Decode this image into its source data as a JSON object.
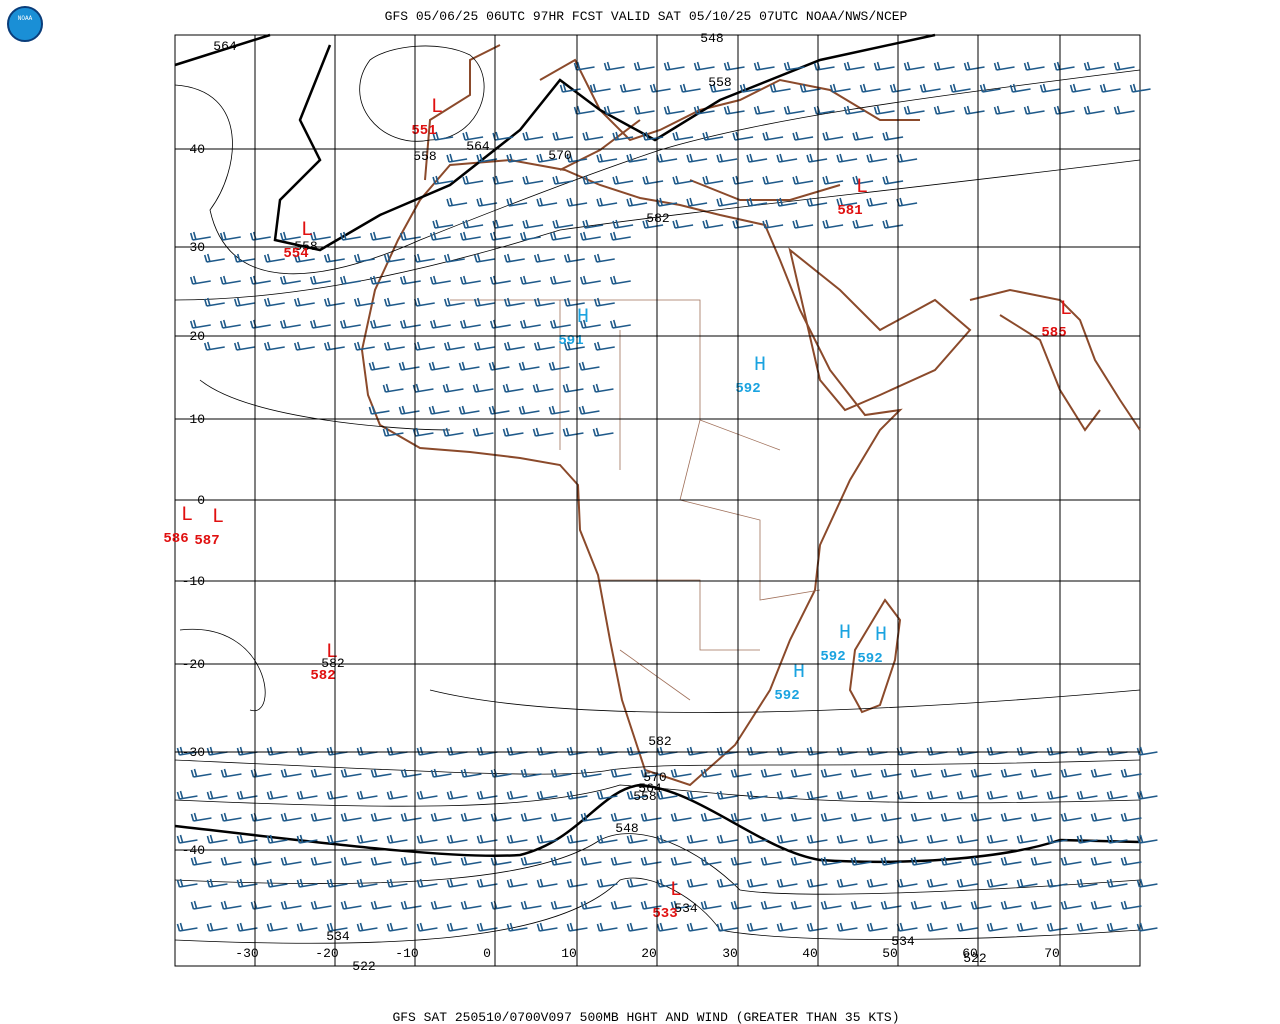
{
  "header": {
    "title": "GFS 05/06/25 06UTC 97HR FCST VALID SAT 05/10/25 07UTC NOAA/NWS/NCEP"
  },
  "footer": {
    "caption": "GFS SAT 250510/0700V097 500MB HGHT AND WIND (GREATER THAN 35 KTS)"
  },
  "logo": {
    "label": "NOAA"
  },
  "map": {
    "latitude_labels": [
      40,
      30,
      20,
      10,
      0,
      -10,
      -20,
      -30,
      -40
    ],
    "longitude_labels": [
      -30,
      -20,
      -10,
      0,
      10,
      20,
      30,
      40,
      50,
      60,
      70
    ],
    "contour_labels": [
      564,
      558,
      564,
      570,
      582,
      558,
      548,
      558,
      582,
      570,
      564,
      558,
      548,
      534,
      534,
      522,
      534,
      522,
      582
    ],
    "centers": [
      {
        "label": "L",
        "value": 551
      },
      {
        "label": "L",
        "value": 554
      },
      {
        "label": "L",
        "value": 581
      },
      {
        "label": "L",
        "value": 585
      },
      {
        "label": "L",
        "value": 586
      },
      {
        "label": "L",
        "value": 587
      },
      {
        "label": "L",
        "value": 582
      },
      {
        "label": "L",
        "value": 533
      },
      {
        "label": "H",
        "value": 591
      },
      {
        "label": "H",
        "value": 592
      },
      {
        "label": "H",
        "value": 592
      },
      {
        "label": "H",
        "value": 592
      },
      {
        "label": "H",
        "value": 592
      }
    ]
  }
}
